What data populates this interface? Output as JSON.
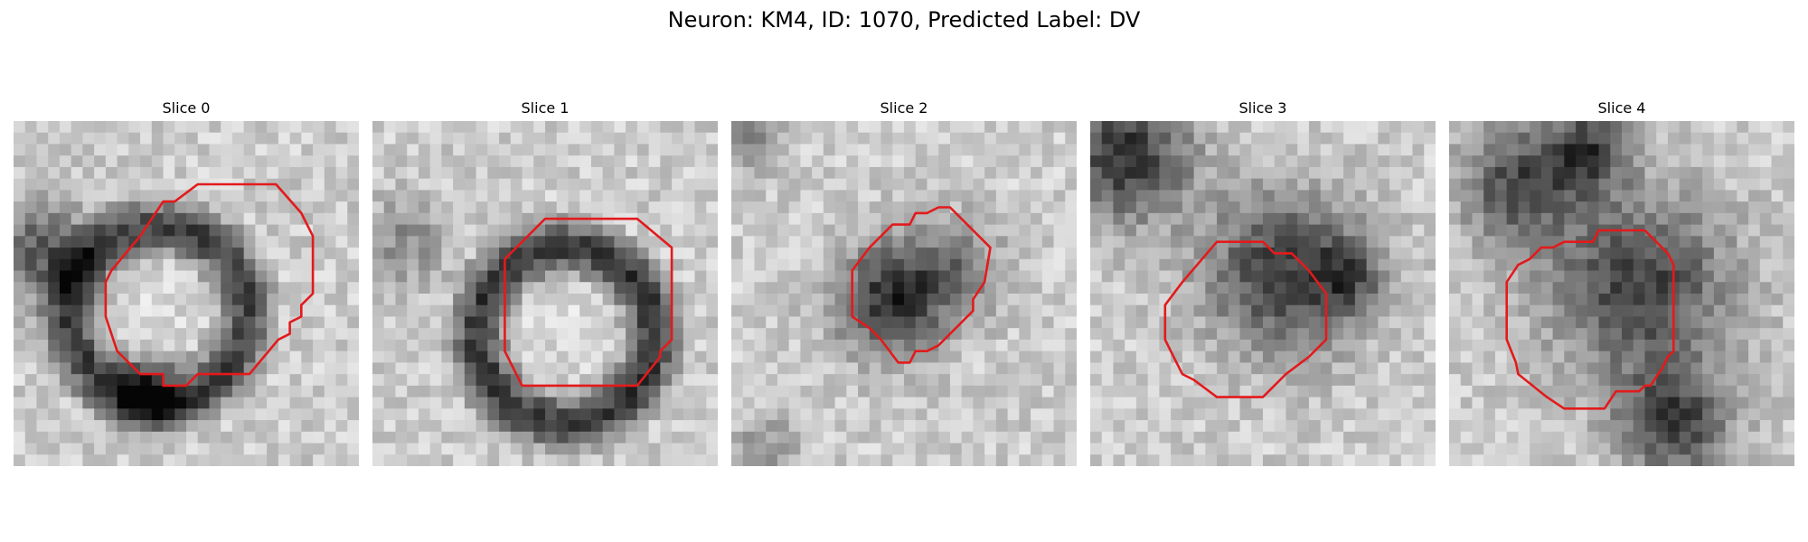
{
  "figure": {
    "title": "Neuron: KM4, ID: 1070, Predicted Label: DV"
  },
  "outline_color": "#e31a1c",
  "colormap": "grayscale",
  "panels": [
    {
      "title": "Slice 0"
    },
    {
      "title": "Slice 1"
    },
    {
      "title": "Slice 2"
    },
    {
      "title": "Slice 3"
    },
    {
      "title": "Slice 4"
    }
  ]
}
